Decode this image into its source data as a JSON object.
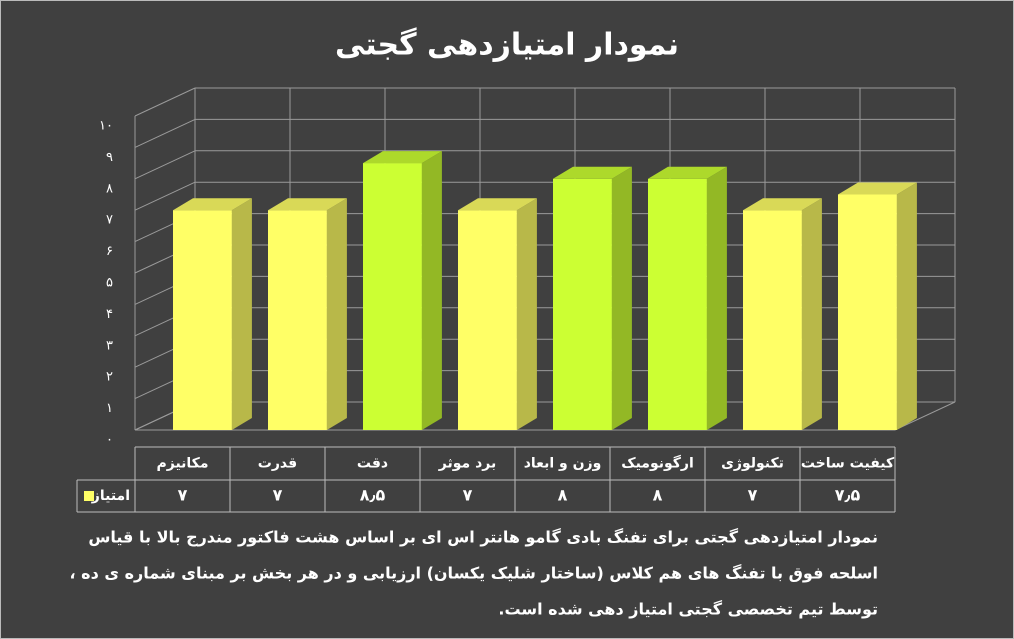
{
  "chart_data": {
    "type": "bar3d",
    "title": "نمودار امتیازدهی گجتی",
    "categories": [
      "مکانیزم",
      "قدرت",
      "دقت",
      "برد موثر",
      "وزن و ابعاد",
      "ارگونومیک",
      "تکنولوژی",
      "کیفیت ساخت"
    ],
    "series": [
      {
        "name": "امتیاز",
        "color": "#ffff66",
        "values": [
          7,
          7,
          8.5,
          7,
          8,
          8,
          7,
          7.5
        ],
        "value_labels": [
          "۷",
          "۷",
          "۸٫۵",
          "۷",
          "۸",
          "۸",
          "۷",
          "۷٫۵"
        ],
        "colors": [
          "#ffff66",
          "#ffff66",
          "#ccff33",
          "#ffff66",
          "#ccff33",
          "#ccff33",
          "#ffff66",
          "#ffff66"
        ]
      }
    ],
    "ylim": [
      0,
      10
    ],
    "yticks": [
      {
        "value": 0,
        "label": "۰"
      },
      {
        "value": 1,
        "label": "۱"
      },
      {
        "value": 2,
        "label": "۲"
      },
      {
        "value": 3,
        "label": "۳"
      },
      {
        "value": 4,
        "label": "۴"
      },
      {
        "value": 5,
        "label": "۵"
      },
      {
        "value": 6,
        "label": "۶"
      },
      {
        "value": 7,
        "label": "۷"
      },
      {
        "value": 8,
        "label": "۸"
      },
      {
        "value": 9,
        "label": "۹"
      },
      {
        "value": 10,
        "label": "۱۰"
      }
    ],
    "grid": true,
    "data_table": true,
    "caption": [
      "نمودار امتیازدهی گجتی برای تفنگ بادی گامو هانتر اس ای بر اساس هشت فاکتور مندرج بالا با قیاس",
      "اسلحه فوق با تفنگ های هم کلاس (ساختار شلیک یکسان) ارزیابی و در هر بخش بر مبنای شماره ی ده ،",
      "توسط تیم تخصصی گجتی امتیاز دهی شده است."
    ]
  }
}
